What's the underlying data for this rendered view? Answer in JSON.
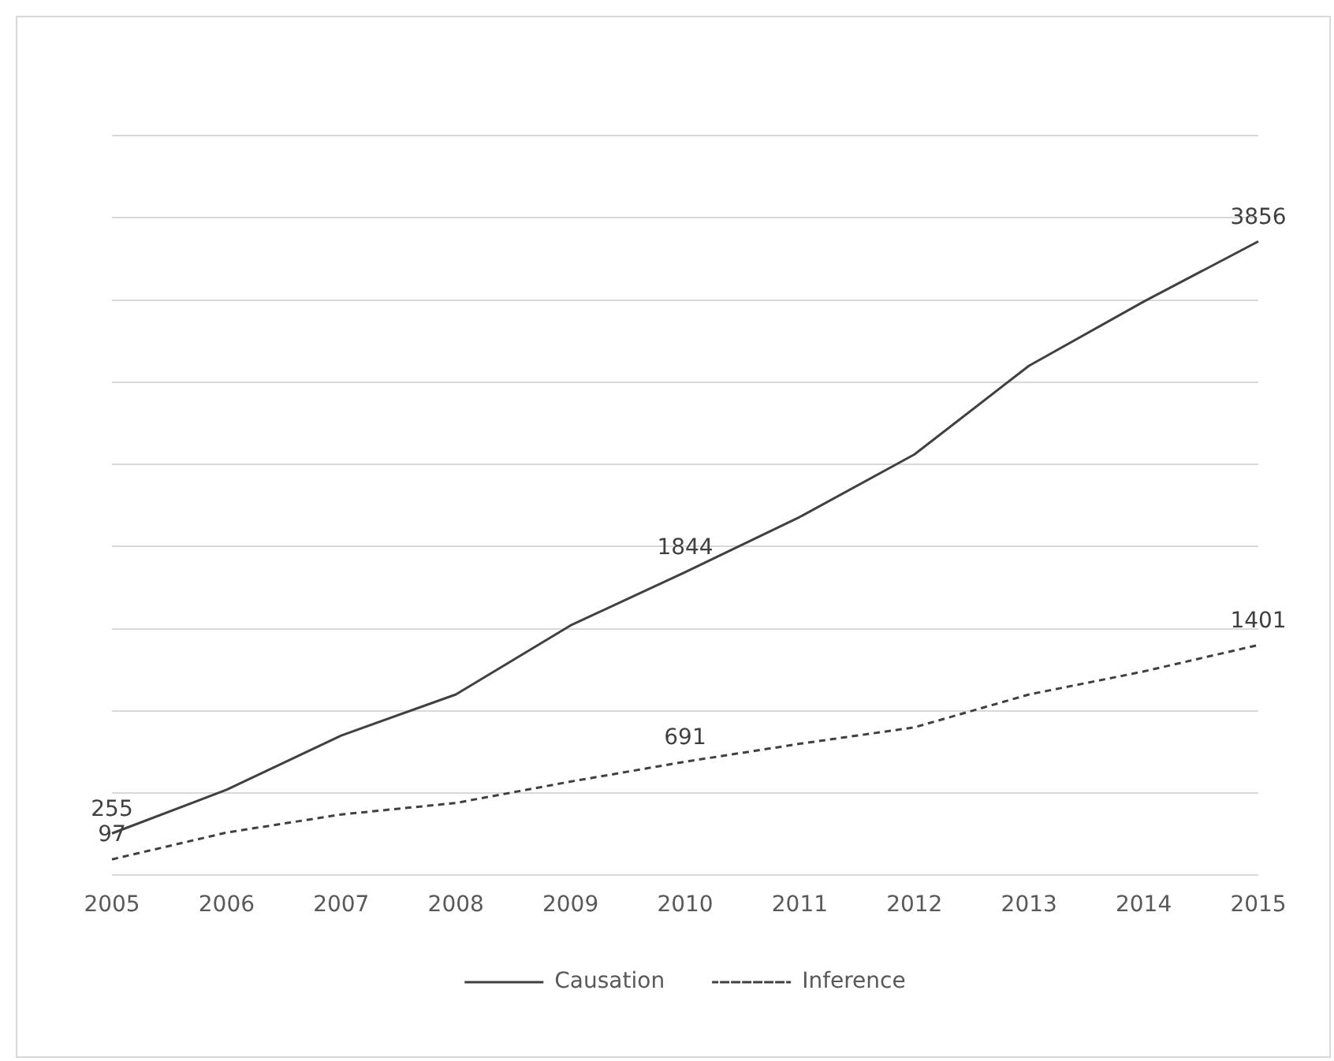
{
  "chart_data": {
    "type": "line",
    "categories": [
      "2005",
      "2006",
      "2007",
      "2008",
      "2009",
      "2010",
      "2011",
      "2012",
      "2013",
      "2014",
      "2015"
    ],
    "series": [
      {
        "name": "Causation",
        "color": "#404040",
        "line_style": "solid",
        "values": [
          255,
          520,
          850,
          1100,
          1520,
          1844,
          2180,
          2560,
          3100,
          3490,
          3856
        ],
        "value_labels": [
          "255",
          null,
          null,
          null,
          null,
          "1844",
          null,
          null,
          null,
          null,
          "3856"
        ]
      },
      {
        "name": "Inference",
        "color": "#404040",
        "line_style": "dashed",
        "values": [
          97,
          260,
          370,
          440,
          570,
          691,
          800,
          900,
          1100,
          1240,
          1401
        ],
        "value_labels": [
          "97",
          null,
          null,
          null,
          null,
          "691",
          null,
          null,
          null,
          null,
          "1401"
        ]
      }
    ],
    "ylim": [
      0,
      4500
    ],
    "yticks": [
      {
        "value": 0,
        "label": null
      },
      {
        "value": 500,
        "label": null
      },
      {
        "value": 1000,
        "label": null
      },
      {
        "value": 1500,
        "label": null
      },
      {
        "value": 2000,
        "label": null
      },
      {
        "value": 2500,
        "label": null
      },
      {
        "value": 3000,
        "label": null
      },
      {
        "value": 3500,
        "label": null
      },
      {
        "value": 4000,
        "label": null
      },
      {
        "value": 4500,
        "label": null
      }
    ],
    "grid": "y",
    "tick_labels": "x",
    "legend": "bottom",
    "marker": "none"
  }
}
